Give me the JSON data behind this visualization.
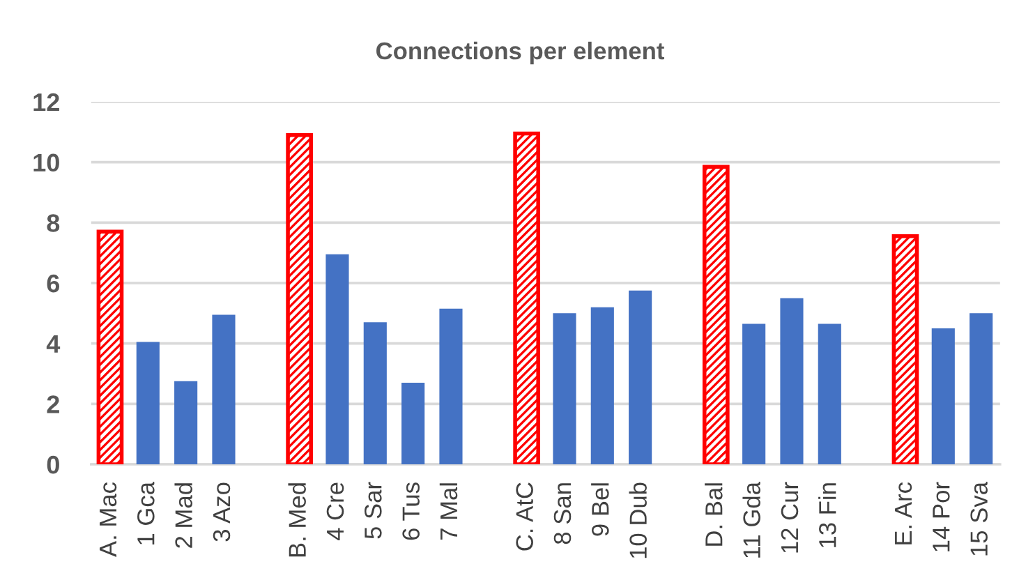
{
  "chart_data": {
    "type": "bar",
    "title": "Connections per element",
    "categories": [
      "A. Mac",
      "1 Gca",
      "2 Mad",
      "3 Azo",
      null,
      "B. Med",
      "4 Cre",
      "5 Sar",
      "6 Tus",
      "7 Mal",
      null,
      "C. AtC",
      "8 San",
      "9 Bel",
      "10 Dub",
      null,
      "D. Bal",
      "11 Gda",
      "12 Cur",
      "13 Fin",
      null,
      "E. Arc",
      "14 Por",
      "15 Sva"
    ],
    "series": [
      {
        "color": "#ff0000",
        "values": [
          7.7,
          null,
          null,
          null,
          null,
          10.9,
          null,
          null,
          null,
          null,
          null,
          10.95,
          null,
          null,
          null,
          null,
          9.85,
          null,
          null,
          null,
          null,
          7.55,
          null,
          null
        ]
      },
      {
        "color": "#4472c4",
        "values": [
          null,
          4.05,
          2.75,
          4.95,
          null,
          null,
          6.95,
          4.7,
          2.7,
          5.15,
          null,
          null,
          5.0,
          5.2,
          5.75,
          null,
          null,
          4.65,
          5.5,
          4.65,
          null,
          null,
          4.5,
          5.0
        ]
      }
    ],
    "ylim": [
      0,
      12
    ],
    "yticks": [
      0,
      2,
      4,
      6,
      8,
      10,
      12
    ],
    "grid": "y"
  }
}
